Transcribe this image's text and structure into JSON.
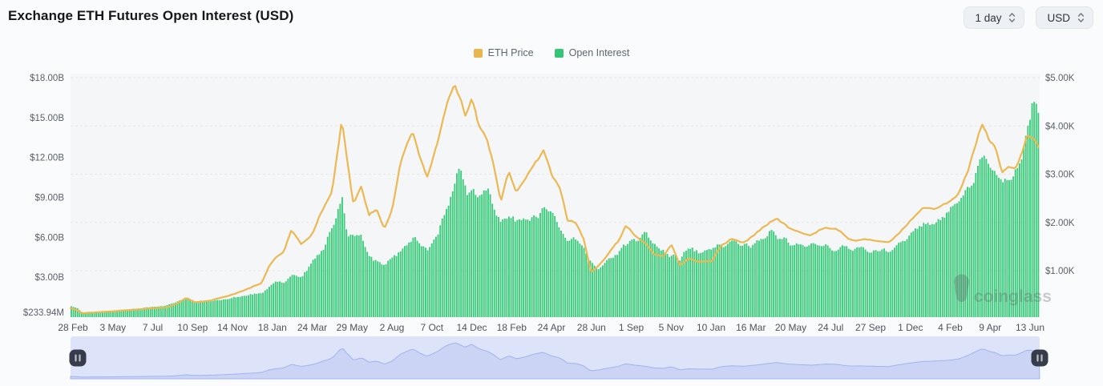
{
  "header": {
    "title": "Exchange ETH Futures Open Interest (USD)"
  },
  "controls": {
    "interval": "1 day",
    "currency": "USD"
  },
  "legend": {
    "items": [
      {
        "label": "ETH Price",
        "color": "#e9b64c"
      },
      {
        "label": "Open Interest",
        "color": "#36c577"
      }
    ]
  },
  "watermark": {
    "text": "coinglass"
  },
  "theme": {
    "page_bg": "#fafbfc",
    "plot_bg": "#f5f6f8",
    "gridline": "#e5e7eb",
    "axis_text": "#5a6069",
    "x_axis_text": "#4d535c",
    "bar_color": "#3ecb7d",
    "line_color": "#ecb852",
    "nav_track": "#dde3f8",
    "nav_fill": "#cbd4f5",
    "nav_stroke": "#a2b3ee",
    "nav_handle": "#363c49",
    "nav_handle_bars": "#b8bfca",
    "watermark_color": "rgba(88,98,95,0.32)"
  },
  "chart_data": {
    "type": "mixed",
    "title": "Exchange ETH Futures Open Interest (USD)",
    "x_axis": {
      "labels": [
        "28 Feb",
        "3 May",
        "7 Jul",
        "10 Sep",
        "14 Nov",
        "18 Jan",
        "24 Mar",
        "29 May",
        "2 Aug",
        "7 Oct",
        "14 Dec",
        "18 Feb",
        "24 Apr",
        "28 Jun",
        "1 Sep",
        "5 Nov",
        "10 Jan",
        "16 Mar",
        "20 May",
        "24 Jul",
        "27 Sep",
        "1 Dec",
        "4 Feb",
        "9 Apr",
        "13 Jun"
      ]
    },
    "y_axis_left": {
      "unit": "USD (billions)",
      "ticks": [
        {
          "label": "$18.00B",
          "value": 18
        },
        {
          "label": "$15.00B",
          "value": 15
        },
        {
          "label": "$12.00B",
          "value": 12
        },
        {
          "label": "$9.00B",
          "value": 9
        },
        {
          "label": "$6.00B",
          "value": 6
        },
        {
          "label": "$3.00B",
          "value": 3
        },
        {
          "label": "$233.94M",
          "value": 0.23394
        }
      ]
    },
    "y_axis_right": {
      "unit": "USD (thousands)",
      "ticks": [
        {
          "label": "$5.00K",
          "value": 5
        },
        {
          "label": "$4.00K",
          "value": 4
        },
        {
          "label": "$3.00K",
          "value": 3
        },
        {
          "label": "$2.00K",
          "value": 2
        },
        {
          "label": "$1.00K",
          "value": 1
        }
      ]
    },
    "grid": {
      "dashed": true,
      "follows": "right-axis"
    },
    "legend_position": "top-center",
    "x": [
      0.0,
      0.006,
      0.012,
      0.03,
      0.05,
      0.075,
      0.1,
      0.112,
      0.119,
      0.128,
      0.145,
      0.16,
      0.18,
      0.197,
      0.205,
      0.212,
      0.22,
      0.228,
      0.238,
      0.25,
      0.262,
      0.27,
      0.28,
      0.285,
      0.292,
      0.3,
      0.308,
      0.316,
      0.324,
      0.332,
      0.34,
      0.353,
      0.36,
      0.368,
      0.378,
      0.388,
      0.396,
      0.4,
      0.408,
      0.414,
      0.422,
      0.429,
      0.437,
      0.444,
      0.452,
      0.46,
      0.47,
      0.48,
      0.488,
      0.496,
      0.505,
      0.513,
      0.521,
      0.529,
      0.537,
      0.545,
      0.555,
      0.565,
      0.573,
      0.582,
      0.593,
      0.602,
      0.612,
      0.62,
      0.629,
      0.638,
      0.648,
      0.662,
      0.672,
      0.682,
      0.695,
      0.71,
      0.722,
      0.729,
      0.74,
      0.752,
      0.764,
      0.778,
      0.79,
      0.802,
      0.815,
      0.828,
      0.844,
      0.856,
      0.868,
      0.88,
      0.895,
      0.905,
      0.915,
      0.925,
      0.933,
      0.941,
      0.948,
      0.955,
      0.961,
      0.968,
      0.975,
      0.982,
      0.987,
      0.991,
      0.995,
      1.0
    ],
    "series": [
      {
        "name": "ETH Price",
        "type": "line",
        "axis": "right",
        "color": "#ecb852",
        "unit": "K USD",
        "values": [
          0.225,
          0.19,
          0.12,
          0.14,
          0.17,
          0.21,
          0.24,
          0.34,
          0.44,
          0.35,
          0.38,
          0.46,
          0.6,
          0.74,
          1.1,
          1.28,
          1.38,
          1.85,
          1.55,
          1.8,
          2.35,
          2.7,
          4.15,
          3.4,
          2.4,
          2.75,
          2.15,
          2.3,
          1.9,
          2.3,
          3.2,
          3.95,
          3.4,
          2.95,
          3.55,
          4.45,
          4.85,
          4.65,
          4.15,
          4.6,
          3.95,
          3.75,
          3.15,
          2.45,
          3.05,
          2.65,
          2.9,
          3.3,
          3.5,
          3.0,
          2.75,
          2.05,
          2.0,
          1.7,
          0.95,
          1.1,
          1.35,
          1.6,
          1.95,
          1.75,
          1.6,
          1.35,
          1.3,
          1.55,
          1.1,
          1.25,
          1.2,
          1.2,
          1.55,
          1.65,
          1.6,
          1.8,
          2.0,
          2.1,
          1.9,
          1.8,
          1.75,
          1.9,
          1.85,
          1.65,
          1.65,
          1.6,
          1.55,
          1.8,
          2.05,
          2.25,
          2.3,
          2.4,
          2.55,
          3.0,
          3.55,
          4.05,
          3.65,
          3.45,
          3.0,
          3.15,
          3.1,
          3.45,
          3.8,
          3.75,
          3.7,
          3.45
        ]
      },
      {
        "name": "Open Interest",
        "type": "bar",
        "axis": "left",
        "color": "#3ecb7d",
        "unit": "B USD",
        "values": [
          0.8,
          0.7,
          0.24,
          0.4,
          0.52,
          0.7,
          0.9,
          1.2,
          1.45,
          1.1,
          1.25,
          1.35,
          1.55,
          1.9,
          2.4,
          2.7,
          2.5,
          3.4,
          3.1,
          4.2,
          5.6,
          6.8,
          8.8,
          5.8,
          6.2,
          6.0,
          4.6,
          4.2,
          3.9,
          4.4,
          5.0,
          5.9,
          5.4,
          5.1,
          6.3,
          8.5,
          10.2,
          11.4,
          9.6,
          10.2,
          9.0,
          9.4,
          8.0,
          7.0,
          7.6,
          7.4,
          7.2,
          7.6,
          8.0,
          7.4,
          6.8,
          6.0,
          5.6,
          5.0,
          4.2,
          3.4,
          4.4,
          5.0,
          5.6,
          5.9,
          6.2,
          5.4,
          5.0,
          4.8,
          4.3,
          5.2,
          5.0,
          5.1,
          5.4,
          5.7,
          5.4,
          5.7,
          6.5,
          6.1,
          5.7,
          5.5,
          5.3,
          5.6,
          5.4,
          5.2,
          5.5,
          5.1,
          5.0,
          5.6,
          6.4,
          6.9,
          7.3,
          7.9,
          8.6,
          9.6,
          10.6,
          11.6,
          10.8,
          10.2,
          9.8,
          10.3,
          11.0,
          12.8,
          14.8,
          16.4,
          15.6,
          15.2
        ]
      }
    ],
    "navigator": {
      "shows": "ETH Price",
      "range_selected": "full"
    }
  }
}
